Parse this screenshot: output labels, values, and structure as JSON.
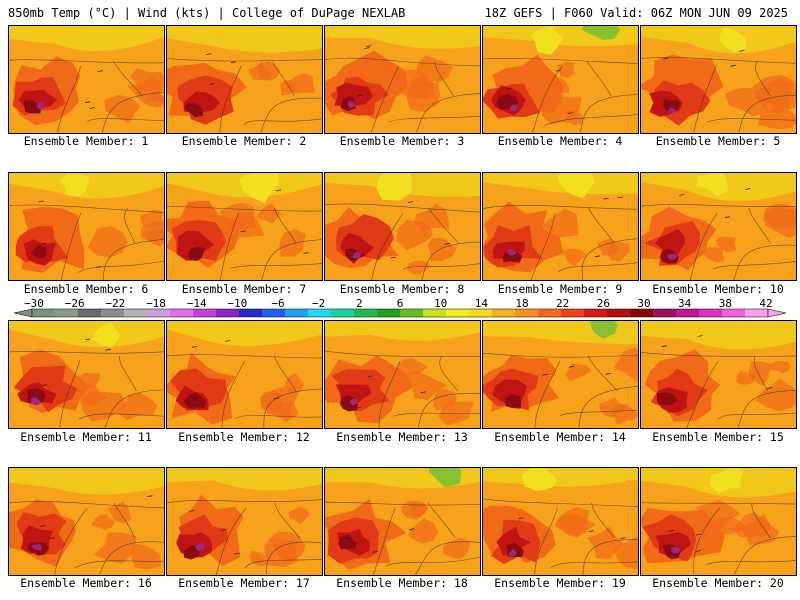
{
  "header": {
    "title_left": "850mb Temp (°C) | Wind (kts) | College of DuPage NEXLAB",
    "title_right": "18Z GEFS | F060 Valid: 06Z MON JUN 09 2025"
  },
  "caption_prefix": "Ensemble Member:",
  "members": [
    {
      "caption": "Ensemble Member: 1"
    },
    {
      "caption": "Ensemble Member: 2"
    },
    {
      "caption": "Ensemble Member: 3"
    },
    {
      "caption": "Ensemble Member: 4"
    },
    {
      "caption": "Ensemble Member: 5"
    },
    {
      "caption": "Ensemble Member: 6"
    },
    {
      "caption": "Ensemble Member: 7"
    },
    {
      "caption": "Ensemble Member: 8"
    },
    {
      "caption": "Ensemble Member: 9"
    },
    {
      "caption": "Ensemble Member: 10"
    },
    {
      "caption": "Ensemble Member: 11"
    },
    {
      "caption": "Ensemble Member: 12"
    },
    {
      "caption": "Ensemble Member: 13"
    },
    {
      "caption": "Ensemble Member: 14"
    },
    {
      "caption": "Ensemble Member: 15"
    },
    {
      "caption": "Ensemble Member: 16"
    },
    {
      "caption": "Ensemble Member: 17"
    },
    {
      "caption": "Ensemble Member: 18"
    },
    {
      "caption": "Ensemble Member: 19"
    },
    {
      "caption": "Ensemble Member: 20"
    }
  ],
  "colorbar": {
    "labels": [
      "−30",
      "−26",
      "−22",
      "−18",
      "−14",
      "−10",
      "−6",
      "−2",
      "2",
      "6",
      "10",
      "14",
      "18",
      "22",
      "26",
      "30",
      "34",
      "38",
      "42"
    ],
    "colors": [
      "#7d8f7d",
      "#8a9a8a",
      "#6b6b6b",
      "#8e8e8e",
      "#b3b3b3",
      "#c8a0d8",
      "#e070e8",
      "#c040d8",
      "#9020c8",
      "#2a2ad0",
      "#2060f0",
      "#20a0f0",
      "#20d8f0",
      "#20d0a0",
      "#20b850",
      "#20a020",
      "#60c020",
      "#c8e020",
      "#f0f020",
      "#f8d820",
      "#f8b020",
      "#f89020",
      "#f86820",
      "#f04020",
      "#d81818",
      "#b01010",
      "#880808",
      "#a01060",
      "#c01890",
      "#e030c0",
      "#f060e0",
      "#f8a0f0"
    ]
  },
  "map_colors": {
    "warm": "#f7a21c",
    "hot": "#f06a18",
    "hotter": "#e03a16",
    "hottest": "#c01414",
    "extreme": "#8a0c12",
    "purple": "#9a2a80",
    "cool": "#f0c81a",
    "yellow": "#f0e020",
    "green": "#88c030"
  }
}
